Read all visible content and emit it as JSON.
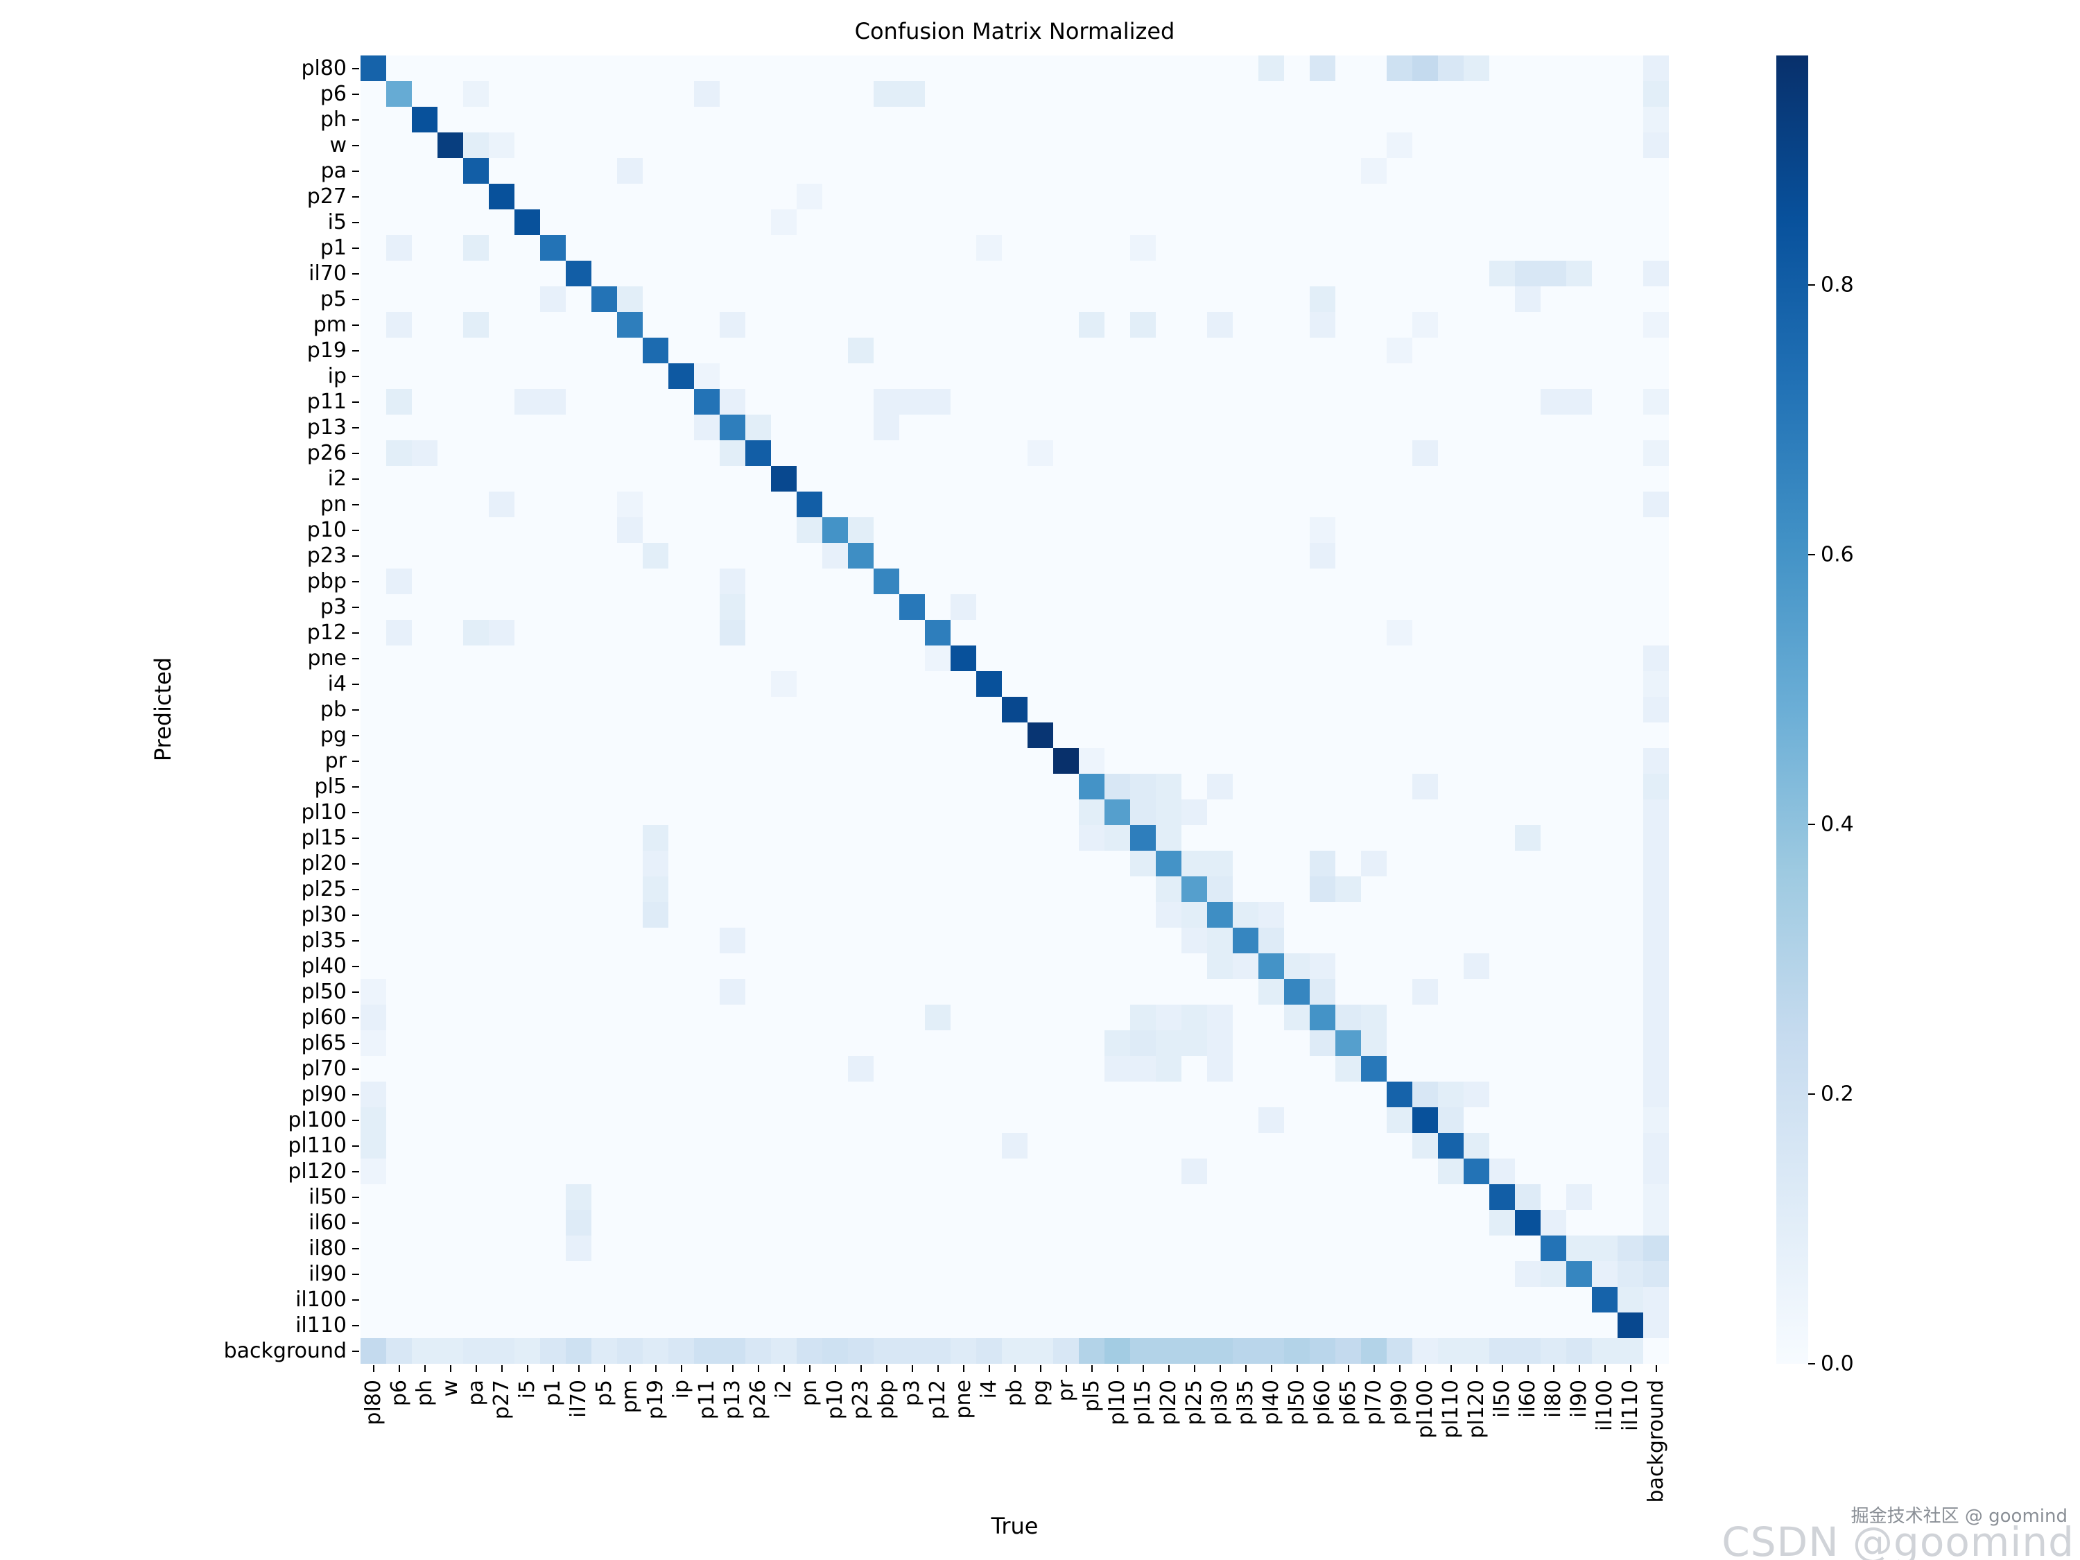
{
  "watermark": {
    "small": "掘金技术社区 @ goomind",
    "large": "CSDN @goomind"
  },
  "chart_data": {
    "type": "heatmap",
    "title": "Confusion Matrix Normalized",
    "xlabel": "True",
    "ylabel": "Predicted",
    "colormap": "Blues",
    "colormap_stops": [
      "#f7fbff",
      "#deebf7",
      "#c6dbef",
      "#9ecae1",
      "#6baed6",
      "#4292c6",
      "#2171b5",
      "#08519c",
      "#08306b"
    ],
    "vmin": 0.0,
    "vmax": 0.97,
    "colorbar_ticks": [
      0.0,
      0.2,
      0.4,
      0.6,
      0.8
    ],
    "labels": [
      "pl80",
      "p6",
      "ph",
      "w",
      "pa",
      "p27",
      "i5",
      "p1",
      "il70",
      "p5",
      "pm",
      "p19",
      "ip",
      "p11",
      "p13",
      "p26",
      "i2",
      "pn",
      "p10",
      "p23",
      "pbp",
      "p3",
      "p12",
      "pne",
      "i4",
      "pb",
      "pg",
      "pr",
      "pl5",
      "pl10",
      "pl15",
      "pl20",
      "pl25",
      "pl30",
      "pl35",
      "pl40",
      "pl50",
      "pl60",
      "pl65",
      "pl70",
      "pl90",
      "pl100",
      "pl110",
      "pl120",
      "il50",
      "il60",
      "il80",
      "il90",
      "il100",
      "il110",
      "background"
    ],
    "diagonal": [
      0.78,
      0.5,
      0.85,
      0.92,
      0.8,
      0.85,
      0.85,
      0.72,
      0.8,
      0.72,
      0.68,
      0.75,
      0.82,
      0.72,
      0.68,
      0.8,
      0.88,
      0.8,
      0.6,
      0.62,
      0.65,
      0.7,
      0.68,
      0.85,
      0.85,
      0.88,
      0.95,
      0.97,
      0.6,
      0.55,
      0.68,
      0.6,
      0.55,
      0.62,
      0.65,
      0.6,
      0.65,
      0.6,
      0.55,
      0.7,
      0.78,
      0.85,
      0.78,
      0.72,
      0.8,
      0.85,
      0.72,
      0.65,
      0.78,
      0.88,
      0.0
    ],
    "background_row": [
      0.25,
      0.15,
      0.1,
      0.1,
      0.12,
      0.12,
      0.1,
      0.15,
      0.2,
      0.12,
      0.15,
      0.12,
      0.15,
      0.2,
      0.2,
      0.15,
      0.12,
      0.18,
      0.2,
      0.18,
      0.15,
      0.15,
      0.15,
      0.12,
      0.15,
      0.1,
      0.1,
      0.15,
      0.3,
      0.35,
      0.3,
      0.3,
      0.3,
      0.3,
      0.28,
      0.28,
      0.3,
      0.28,
      0.25,
      0.3,
      0.2,
      0.08,
      0.1,
      0.1,
      0.15,
      0.15,
      0.12,
      0.15,
      0.1,
      0.1,
      0.0
    ],
    "background_col": [
      0.08,
      0.1,
      0.06,
      0.08,
      0,
      0,
      0,
      0,
      0.08,
      0,
      0.05,
      0,
      0,
      0.06,
      0,
      0.06,
      0,
      0.08,
      0,
      0,
      0,
      0,
      0,
      0.08,
      0.06,
      0.08,
      0,
      0.08,
      0.1,
      0.08,
      0.08,
      0.08,
      0.08,
      0.08,
      0.08,
      0.08,
      0.08,
      0.08,
      0.08,
      0.08,
      0.08,
      0.06,
      0.08,
      0.08,
      0.06,
      0.06,
      0.2,
      0.15,
      0.08,
      0.08,
      0
    ],
    "cells": [
      [
        "pl80",
        "pl40",
        0.1
      ],
      [
        "pl80",
        "pl60",
        0.15
      ],
      [
        "pl80",
        "pl90",
        0.2
      ],
      [
        "pl80",
        "pl100",
        0.25
      ],
      [
        "pl80",
        "pl110",
        0.15
      ],
      [
        "pl80",
        "pl120",
        0.1
      ],
      [
        "p6",
        "pa",
        0.06
      ],
      [
        "p6",
        "p11",
        0.08
      ],
      [
        "p6",
        "pbp",
        0.1
      ],
      [
        "p6",
        "p3",
        0.1
      ],
      [
        "w",
        "pa",
        0.1
      ],
      [
        "w",
        "p27",
        0.06
      ],
      [
        "w",
        "pl90",
        0.05
      ],
      [
        "pa",
        "pm",
        0.08
      ],
      [
        "pa",
        "pl70",
        0.05
      ],
      [
        "p27",
        "pn",
        0.05
      ],
      [
        "i5",
        "i2",
        0.05
      ],
      [
        "p1",
        "p6",
        0.08
      ],
      [
        "p1",
        "pa",
        0.1
      ],
      [
        "p1",
        "i4",
        0.05
      ],
      [
        "p1",
        "pl15",
        0.05
      ],
      [
        "il70",
        "il50",
        0.1
      ],
      [
        "il70",
        "il60",
        0.15
      ],
      [
        "il70",
        "il80",
        0.15
      ],
      [
        "il70",
        "il90",
        0.1
      ],
      [
        "p5",
        "p1",
        0.08
      ],
      [
        "p5",
        "pm",
        0.1
      ],
      [
        "p5",
        "pl60",
        0.1
      ],
      [
        "p5",
        "il60",
        0.08
      ],
      [
        "pm",
        "p6",
        0.08
      ],
      [
        "pm",
        "pa",
        0.1
      ],
      [
        "pm",
        "p13",
        0.08
      ],
      [
        "pm",
        "pl5",
        0.1
      ],
      [
        "pm",
        "pl15",
        0.1
      ],
      [
        "pm",
        "pl30",
        0.08
      ],
      [
        "pm",
        "pl60",
        0.08
      ],
      [
        "pm",
        "pl100",
        0.05
      ],
      [
        "p19",
        "p23",
        0.1
      ],
      [
        "p19",
        "pl90",
        0.05
      ],
      [
        "ip",
        "p11",
        0.05
      ],
      [
        "p11",
        "p6",
        0.1
      ],
      [
        "p11",
        "i5",
        0.08
      ],
      [
        "p11",
        "p1",
        0.08
      ],
      [
        "p11",
        "p13",
        0.08
      ],
      [
        "p11",
        "pbp",
        0.08
      ],
      [
        "p11",
        "p3",
        0.08
      ],
      [
        "p11",
        "p12",
        0.08
      ],
      [
        "p11",
        "il80",
        0.08
      ],
      [
        "p11",
        "il90",
        0.08
      ],
      [
        "p13",
        "p11",
        0.08
      ],
      [
        "p13",
        "p26",
        0.1
      ],
      [
        "p13",
        "pbp",
        0.08
      ],
      [
        "p26",
        "p6",
        0.1
      ],
      [
        "p26",
        "ph",
        0.08
      ],
      [
        "p26",
        "p13",
        0.1
      ],
      [
        "p26",
        "pg",
        0.05
      ],
      [
        "p26",
        "pl100",
        0.08
      ],
      [
        "pn",
        "p27",
        0.08
      ],
      [
        "pn",
        "pm",
        0.05
      ],
      [
        "p10",
        "pm",
        0.08
      ],
      [
        "p10",
        "pn",
        0.1
      ],
      [
        "p10",
        "p23",
        0.1
      ],
      [
        "p10",
        "pl60",
        0.05
      ],
      [
        "p23",
        "p19",
        0.1
      ],
      [
        "p23",
        "p10",
        0.08
      ],
      [
        "p23",
        "pl60",
        0.08
      ],
      [
        "pbp",
        "p6",
        0.08
      ],
      [
        "pbp",
        "p13",
        0.08
      ],
      [
        "p3",
        "p13",
        0.1
      ],
      [
        "p3",
        "pne",
        0.08
      ],
      [
        "p12",
        "p6",
        0.08
      ],
      [
        "p12",
        "pa",
        0.1
      ],
      [
        "p12",
        "p27",
        0.08
      ],
      [
        "p12",
        "p13",
        0.12
      ],
      [
        "p12",
        "pl90",
        0.05
      ],
      [
        "pne",
        "p12",
        0.05
      ],
      [
        "i4",
        "i2",
        0.05
      ],
      [
        "pr",
        "pl5",
        0.05
      ],
      [
        "pl5",
        "pl10",
        0.15
      ],
      [
        "pl5",
        "pl15",
        0.12
      ],
      [
        "pl5",
        "pl20",
        0.1
      ],
      [
        "pl5",
        "pl30",
        0.08
      ],
      [
        "pl5",
        "pl100",
        0.08
      ],
      [
        "pl10",
        "pl5",
        0.1
      ],
      [
        "pl10",
        "pl15",
        0.12
      ],
      [
        "pl10",
        "pl20",
        0.1
      ],
      [
        "pl10",
        "pl25",
        0.08
      ],
      [
        "pl15",
        "p19",
        0.1
      ],
      [
        "pl15",
        "pl5",
        0.08
      ],
      [
        "pl15",
        "pl10",
        0.1
      ],
      [
        "pl15",
        "pl20",
        0.1
      ],
      [
        "pl15",
        "il60",
        0.1
      ],
      [
        "pl20",
        "p19",
        0.08
      ],
      [
        "pl20",
        "pl15",
        0.1
      ],
      [
        "pl20",
        "pl25",
        0.1
      ],
      [
        "pl20",
        "pl30",
        0.1
      ],
      [
        "pl20",
        "pl60",
        0.12
      ],
      [
        "pl20",
        "pl70",
        0.08
      ],
      [
        "pl25",
        "p19",
        0.1
      ],
      [
        "pl25",
        "pl20",
        0.1
      ],
      [
        "pl25",
        "pl30",
        0.12
      ],
      [
        "pl25",
        "pl60",
        0.15
      ],
      [
        "pl25",
        "pl65",
        0.1
      ],
      [
        "pl30",
        "p19",
        0.12
      ],
      [
        "pl30",
        "pl20",
        0.08
      ],
      [
        "pl30",
        "pl25",
        0.1
      ],
      [
        "pl30",
        "pl35",
        0.1
      ],
      [
        "pl30",
        "pl40",
        0.08
      ],
      [
        "pl35",
        "p13",
        0.08
      ],
      [
        "pl35",
        "pl25",
        0.08
      ],
      [
        "pl35",
        "pl30",
        0.1
      ],
      [
        "pl35",
        "pl40",
        0.12
      ],
      [
        "pl40",
        "pl30",
        0.1
      ],
      [
        "pl40",
        "pl35",
        0.08
      ],
      [
        "pl40",
        "pl50",
        0.1
      ],
      [
        "pl40",
        "pl60",
        0.08
      ],
      [
        "pl40",
        "pl120",
        0.08
      ],
      [
        "pl50",
        "pl80",
        0.05
      ],
      [
        "pl50",
        "p13",
        0.08
      ],
      [
        "pl50",
        "pl40",
        0.1
      ],
      [
        "pl50",
        "pl60",
        0.12
      ],
      [
        "pl50",
        "pl100",
        0.08
      ],
      [
        "pl60",
        "pl80",
        0.08
      ],
      [
        "pl60",
        "p12",
        0.1
      ],
      [
        "pl60",
        "pl15",
        0.1
      ],
      [
        "pl60",
        "pl20",
        0.08
      ],
      [
        "pl60",
        "pl25",
        0.1
      ],
      [
        "pl60",
        "pl30",
        0.08
      ],
      [
        "pl60",
        "pl50",
        0.1
      ],
      [
        "pl60",
        "pl65",
        0.12
      ],
      [
        "pl60",
        "pl70",
        0.1
      ],
      [
        "pl65",
        "pl80",
        0.05
      ],
      [
        "pl65",
        "pl10",
        0.1
      ],
      [
        "pl65",
        "pl15",
        0.12
      ],
      [
        "pl65",
        "pl20",
        0.1
      ],
      [
        "pl65",
        "pl25",
        0.1
      ],
      [
        "pl65",
        "pl30",
        0.08
      ],
      [
        "pl65",
        "pl60",
        0.12
      ],
      [
        "pl65",
        "pl70",
        0.1
      ],
      [
        "pl70",
        "p23",
        0.08
      ],
      [
        "pl70",
        "pl10",
        0.08
      ],
      [
        "pl70",
        "pl15",
        0.08
      ],
      [
        "pl70",
        "pl20",
        0.1
      ],
      [
        "pl70",
        "pl30",
        0.08
      ],
      [
        "pl70",
        "pl65",
        0.1
      ],
      [
        "pl90",
        "pl80",
        0.08
      ],
      [
        "pl90",
        "pl100",
        0.15
      ],
      [
        "pl90",
        "pl110",
        0.1
      ],
      [
        "pl90",
        "pl120",
        0.08
      ],
      [
        "pl100",
        "pl80",
        0.1
      ],
      [
        "pl100",
        "pl40",
        0.08
      ],
      [
        "pl100",
        "pl90",
        0.1
      ],
      [
        "pl100",
        "pl110",
        0.12
      ],
      [
        "pl110",
        "pl80",
        0.1
      ],
      [
        "pl110",
        "pb",
        0.08
      ],
      [
        "pl110",
        "pl100",
        0.1
      ],
      [
        "pl110",
        "pl120",
        0.1
      ],
      [
        "pl120",
        "pl80",
        0.05
      ],
      [
        "pl120",
        "pl25",
        0.08
      ],
      [
        "pl120",
        "pl110",
        0.1
      ],
      [
        "pl120",
        "il50",
        0.08
      ],
      [
        "il50",
        "il60",
        0.12
      ],
      [
        "il50",
        "il70",
        0.1
      ],
      [
        "il50",
        "il90",
        0.08
      ],
      [
        "il60",
        "il50",
        0.1
      ],
      [
        "il60",
        "il70",
        0.12
      ],
      [
        "il60",
        "il80",
        0.08
      ],
      [
        "il80",
        "il70",
        0.08
      ],
      [
        "il80",
        "il90",
        0.1
      ],
      [
        "il80",
        "il100",
        0.1
      ],
      [
        "il80",
        "il110",
        0.15
      ],
      [
        "il90",
        "il60",
        0.08
      ],
      [
        "il90",
        "il80",
        0.1
      ],
      [
        "il90",
        "il100",
        0.08
      ],
      [
        "il90",
        "il110",
        0.12
      ],
      [
        "il100",
        "il110",
        0.1
      ]
    ]
  }
}
